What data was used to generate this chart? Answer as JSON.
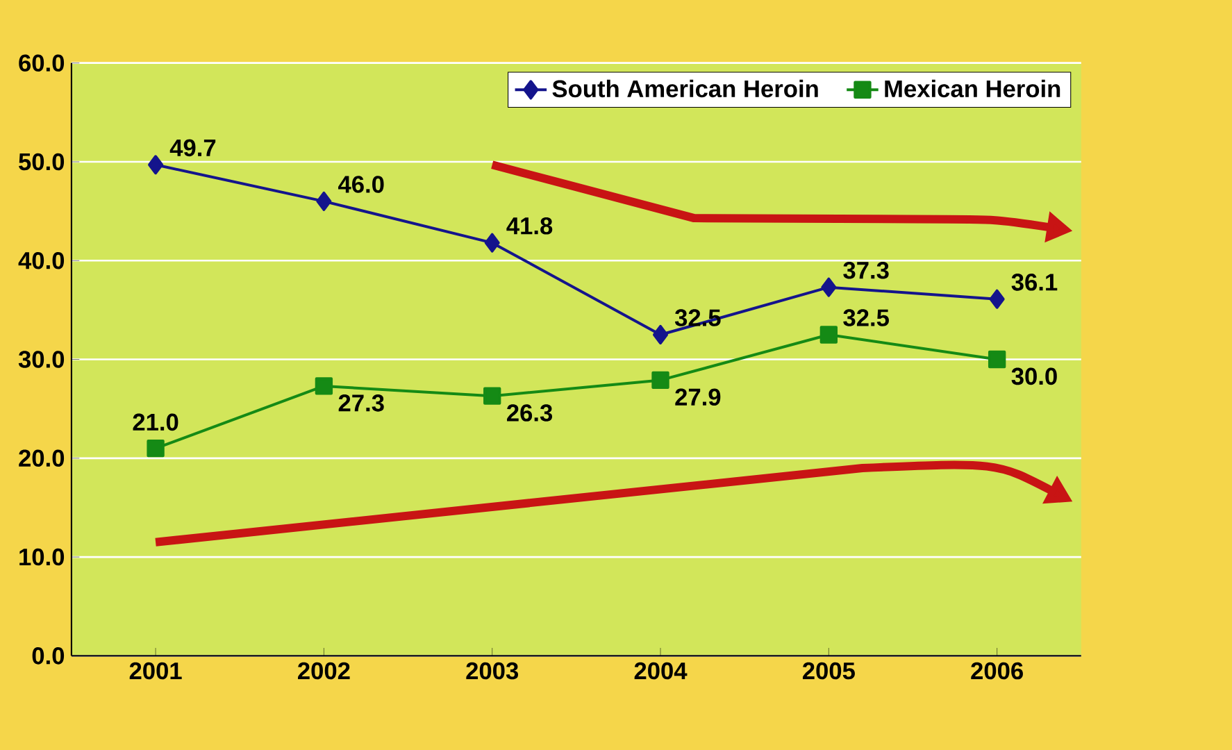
{
  "chart_data": {
    "type": "line",
    "categories": [
      "2001",
      "2002",
      "2003",
      "2004",
      "2005",
      "2006"
    ],
    "series": [
      {
        "name": "South American Heroin",
        "color": "#14148c",
        "marker": "diamond",
        "values": [
          49.7,
          46.0,
          41.8,
          32.5,
          37.3,
          36.1
        ],
        "value_labels": [
          "49.7",
          "46.0",
          "41.8",
          "32.5",
          "37.3",
          "36.1"
        ]
      },
      {
        "name": "Mexican Heroin",
        "color": "#158a15",
        "marker": "square",
        "values": [
          21.0,
          27.3,
          26.3,
          27.9,
          32.5,
          30.0
        ],
        "value_labels": [
          "21.0",
          "27.3",
          "26.3",
          "27.9",
          "32.5",
          "30.0"
        ]
      }
    ],
    "ylim": [
      0,
      60
    ],
    "yticks": [
      {
        "value": 0,
        "label": "0.0"
      },
      {
        "value": 10,
        "label": "10.0"
      },
      {
        "value": 20,
        "label": "20.0"
      },
      {
        "value": 30,
        "label": "30.0"
      },
      {
        "value": 40,
        "label": "40.0"
      },
      {
        "value": 50,
        "label": "50.0"
      },
      {
        "value": 60,
        "label": "60.0"
      }
    ],
    "grid": "y",
    "legend": "top right",
    "line_style": "solid"
  }
}
